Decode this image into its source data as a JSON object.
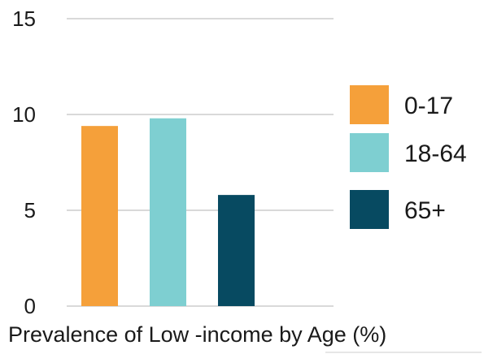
{
  "chart_data": {
    "type": "bar",
    "categories": [
      "0-17",
      "18-64",
      "65+"
    ],
    "values": [
      9.4,
      9.8,
      5.8
    ],
    "colors": [
      "#f5a03a",
      "#7ecfd1",
      "#074a61"
    ],
    "ylim": [
      0,
      15
    ],
    "yticks": [
      "0",
      "5",
      "10",
      "15"
    ],
    "grid": true,
    "legend": {
      "position": "right",
      "entries": [
        "0-17",
        "18-64",
        "65+"
      ]
    },
    "xlabel": "Prevalence of Low -income by Age (%)"
  }
}
